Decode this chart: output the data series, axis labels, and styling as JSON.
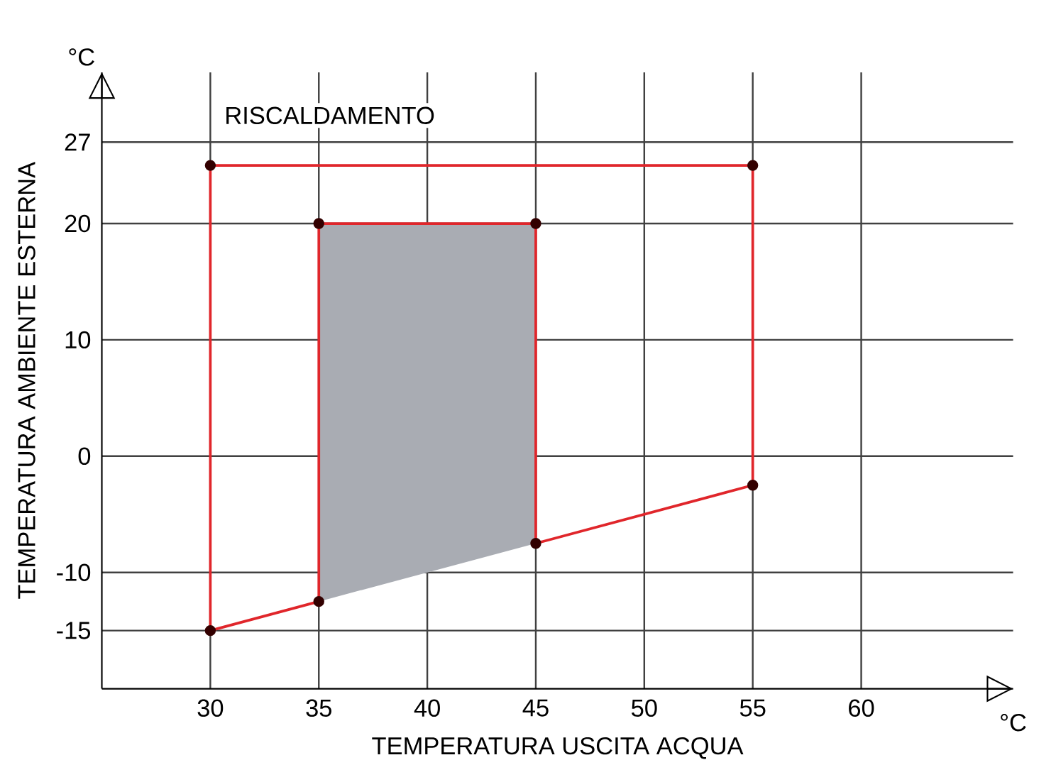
{
  "chart_data": {
    "type": "line",
    "title": "RISCALDAMENTO",
    "xlabel": "TEMPERATURA USCITA ACQUA",
    "ylabel": "TEMPERATURA AMBIENTE ESTERNA",
    "annotations": [
      "°C",
      "°C"
    ],
    "series": [
      {
        "type": "area",
        "color": "#a9acb3",
        "x": [
          35,
          35,
          45,
          45,
          35
        ],
        "values": [
          -12.5,
          20,
          20,
          -7.5,
          -12.5
        ]
      },
      {
        "type": "line",
        "color": "#e0262b",
        "marker": "circle",
        "x": [
          30,
          30,
          55,
          55,
          45,
          45,
          35,
          35
        ],
        "values": [
          -15,
          25,
          25,
          -2.5,
          -7.5,
          20,
          20,
          -12.5
        ]
      },
      {
        "color": "#e0262b",
        "marker": "none",
        "x": [
          30,
          35
        ],
        "values": [
          -15,
          -12.5
        ]
      }
    ],
    "xlim": [
      25,
      67
    ],
    "ylim": [
      -20,
      33
    ],
    "xticks": [
      30,
      35,
      40,
      45,
      50,
      55,
      60
    ],
    "yticks": [
      -15,
      -10,
      0,
      10,
      20,
      27
    ],
    "grid": true
  }
}
